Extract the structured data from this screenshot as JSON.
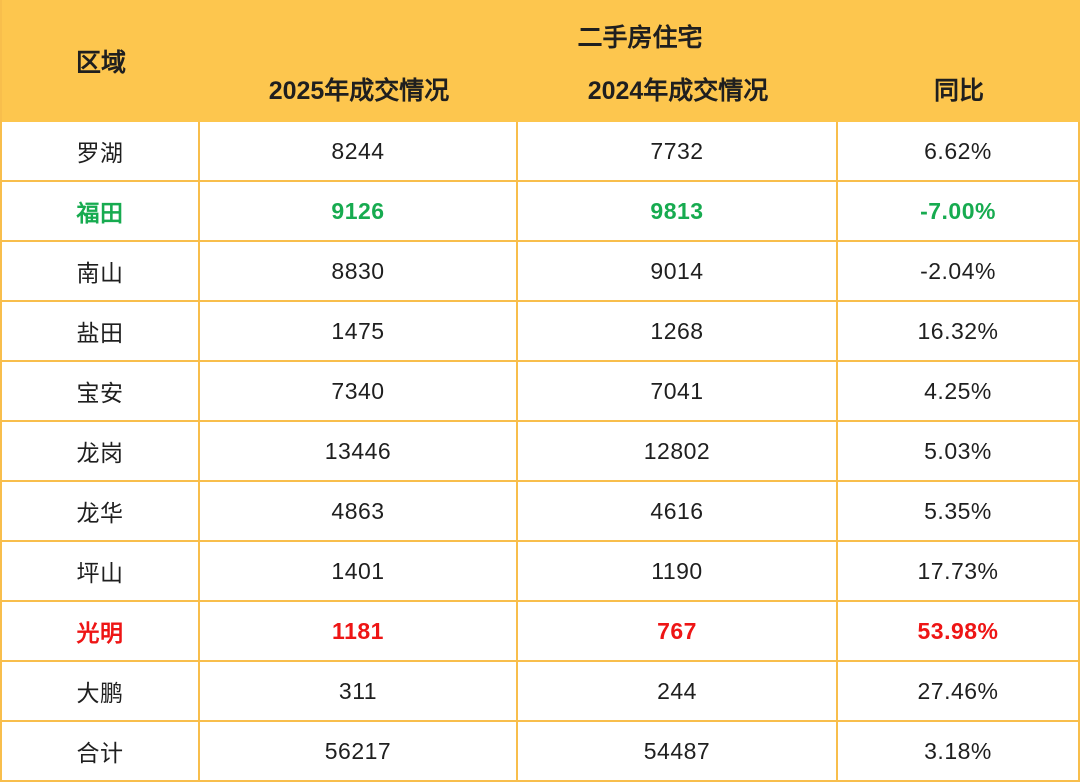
{
  "table": {
    "header": {
      "region": "区域",
      "group_title": "二手房住宅",
      "col_2025": "2025年成交情况",
      "col_2024": "2024年成交情况",
      "col_yoy": "同比"
    },
    "rows": [
      {
        "region": "罗湖",
        "y2025": "8244",
        "y2024": "7732",
        "yoy": "6.62%",
        "highlight": "none"
      },
      {
        "region": "福田",
        "y2025": "9126",
        "y2024": "9813",
        "yoy": "-7.00%",
        "highlight": "green"
      },
      {
        "region": "南山",
        "y2025": "8830",
        "y2024": "9014",
        "yoy": "-2.04%",
        "highlight": "none"
      },
      {
        "region": "盐田",
        "y2025": "1475",
        "y2024": "1268",
        "yoy": "16.32%",
        "highlight": "none"
      },
      {
        "region": "宝安",
        "y2025": "7340",
        "y2024": "7041",
        "yoy": "4.25%",
        "highlight": "none"
      },
      {
        "region": "龙岗",
        "y2025": "13446",
        "y2024": "12802",
        "yoy": "5.03%",
        "highlight": "none"
      },
      {
        "region": "龙华",
        "y2025": "4863",
        "y2024": "4616",
        "yoy": "5.35%",
        "highlight": "none"
      },
      {
        "region": "坪山",
        "y2025": "1401",
        "y2024": "1190",
        "yoy": "17.73%",
        "highlight": "none"
      },
      {
        "region": "光明",
        "y2025": "1181",
        "y2024": "767",
        "yoy": "53.98%",
        "highlight": "red"
      },
      {
        "region": "大鹏",
        "y2025": "311",
        "y2024": "244",
        "yoy": "27.46%",
        "highlight": "none"
      },
      {
        "region": "合计",
        "y2025": "56217",
        "y2024": "54487",
        "yoy": "3.18%",
        "highlight": "none"
      }
    ],
    "colors": {
      "header_bg": "#FDC64E",
      "grid_border": "#F8BE4C",
      "green": "#17AB50",
      "red": "#EE1515",
      "text": "#1F1F1F"
    }
  },
  "chart_data": {
    "type": "table",
    "title": "二手房住宅",
    "columns": [
      "区域",
      "2025年成交情况",
      "2024年成交情况",
      "同比"
    ],
    "rows": [
      [
        "罗湖",
        8244,
        7732,
        "6.62%"
      ],
      [
        "福田",
        9126,
        9813,
        "-7.00%"
      ],
      [
        "南山",
        8830,
        9014,
        "-2.04%"
      ],
      [
        "盐田",
        1475,
        1268,
        "16.32%"
      ],
      [
        "宝安",
        7340,
        7041,
        "4.25%"
      ],
      [
        "龙岗",
        13446,
        12802,
        "5.03%"
      ],
      [
        "龙华",
        4863,
        4616,
        "5.35%"
      ],
      [
        "坪山",
        1401,
        1190,
        "17.73%"
      ],
      [
        "光明",
        1181,
        767,
        "53.98%"
      ],
      [
        "大鹏",
        311,
        244,
        "27.46%"
      ],
      [
        "合计",
        56217,
        54487,
        "3.18%"
      ]
    ],
    "highlights": {
      "福田": "green",
      "光明": "red"
    }
  }
}
